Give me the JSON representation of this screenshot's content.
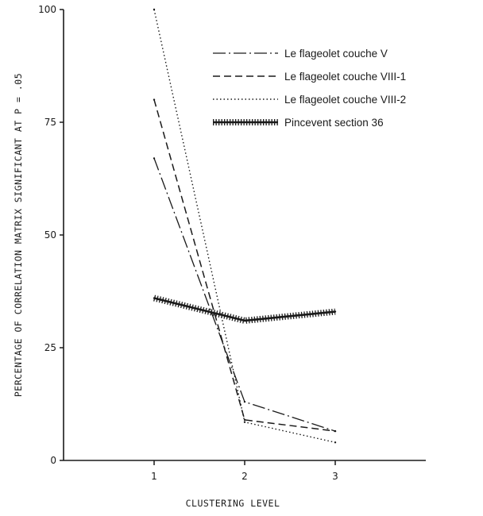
{
  "chart_data": {
    "type": "line",
    "title": "",
    "xlabel": "CLUSTERING LEVEL",
    "ylabel": "PERCENTAGE OF CORRELATION MATRIX SIGNIFICANT AT P = .05",
    "x": [
      1,
      2,
      3
    ],
    "x_ticks": [
      "1",
      "2",
      "3"
    ],
    "xlim": [
      0,
      4
    ],
    "y_ticks": [
      "0",
      "25",
      "50",
      "75",
      "100"
    ],
    "ylim": [
      0,
      100
    ],
    "grid": false,
    "legend_position": "top-right",
    "series": [
      {
        "name": "Le flageolet couche V",
        "values": [
          67,
          13,
          6.5
        ],
        "style": "dash-dot"
      },
      {
        "name": "Le flageolet couche VIII-1",
        "values": [
          80,
          9,
          6.5
        ],
        "style": "dashed"
      },
      {
        "name": "Le flageolet couche VIII-2",
        "values": [
          100,
          8.5,
          4
        ],
        "style": "dotted"
      },
      {
        "name": "Pincevent section 36",
        "values": [
          36,
          31,
          33
        ],
        "style": "cross-hatched"
      }
    ]
  }
}
